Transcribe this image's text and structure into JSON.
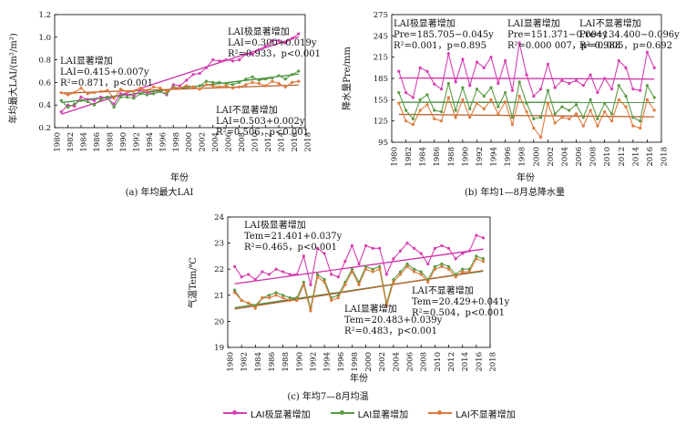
{
  "colors": {
    "sig_strong": "#d63fb0",
    "sig": "#5a9a44",
    "nonsig": "#e07a3c",
    "sig_strong_fit": "#cc2fa8",
    "sig_fit": "#3f8a3a",
    "nonsig_fit": "#b8622e"
  },
  "legend": [
    {
      "label": "LAI极显著增加",
      "color": "#d63fb0"
    },
    {
      "label": "LAI显著增加",
      "color": "#5a9a44"
    },
    {
      "label": "LAI不显著增加",
      "color": "#e07a3c"
    }
  ],
  "chart_data": [
    {
      "type": "line",
      "caption": "(a) 年均最大LAI",
      "xlabel": "年份",
      "ylabel": "年均最大LAI/(m²/m²)",
      "xlim": [
        1980,
        2018
      ],
      "ylim": [
        0.2,
        1.2
      ],
      "xticks": [
        1980,
        1982,
        1984,
        1986,
        1988,
        1990,
        1992,
        1994,
        1996,
        1998,
        2000,
        2002,
        2004,
        2006,
        2008,
        2010,
        2012,
        2014,
        2016,
        2018
      ],
      "yticks": [
        0.2,
        0.4,
        0.6,
        0.8,
        1.0,
        1.2
      ],
      "ytick_labels": [
        "0.2",
        "0.4",
        "0.6",
        "0.8",
        "1.0",
        "1.2"
      ],
      "x": [
        1981,
        1982,
        1983,
        1984,
        1985,
        1986,
        1987,
        1988,
        1989,
        1990,
        1991,
        1992,
        1993,
        1994,
        1995,
        1996,
        1997,
        1998,
        1999,
        2000,
        2001,
        2002,
        2003,
        2004,
        2005,
        2006,
        2007,
        2008,
        2009,
        2010,
        2011,
        2012,
        2013,
        2014,
        2015,
        2016,
        2017
      ],
      "series": [
        {
          "name": "LAI极显著增加",
          "color_key": "sig_strong",
          "values": [
            0.34,
            0.4,
            0.39,
            0.47,
            0.45,
            0.44,
            0.47,
            0.46,
            0.41,
            0.5,
            0.49,
            0.48,
            0.53,
            0.51,
            0.5,
            0.52,
            0.49,
            0.58,
            0.57,
            0.62,
            0.67,
            0.68,
            0.73,
            0.8,
            0.79,
            0.8,
            0.79,
            0.8,
            0.85,
            0.85,
            0.89,
            0.92,
            0.97,
            0.97,
            0.95,
            0.99,
            1.03
          ]
        },
        {
          "name": "LAI显著增加",
          "color_key": "sig",
          "values": [
            0.44,
            0.38,
            0.41,
            0.44,
            0.43,
            0.4,
            0.45,
            0.47,
            0.38,
            0.47,
            0.47,
            0.46,
            0.5,
            0.49,
            0.5,
            0.52,
            0.5,
            0.56,
            0.55,
            0.57,
            0.56,
            0.57,
            0.61,
            0.6,
            0.6,
            0.59,
            0.58,
            0.6,
            0.63,
            0.65,
            0.62,
            0.63,
            0.64,
            0.66,
            0.63,
            0.67,
            0.7
          ]
        },
        {
          "name": "LAI不显著增加",
          "color_key": "nonsig",
          "values": [
            0.51,
            0.49,
            0.51,
            0.55,
            0.5,
            0.51,
            0.52,
            0.53,
            0.46,
            0.54,
            0.52,
            0.52,
            0.55,
            0.53,
            0.56,
            0.55,
            0.52,
            0.55,
            0.55,
            0.57,
            0.56,
            0.54,
            0.58,
            0.57,
            0.56,
            0.57,
            0.55,
            0.56,
            0.58,
            0.6,
            0.59,
            0.57,
            0.61,
            0.59,
            0.56,
            0.6,
            0.61
          ]
        }
      ],
      "fits": [
        {
          "color_key": "sig_strong_fit",
          "a": 0.3,
          "b": 0.019
        },
        {
          "color_key": "sig_fit",
          "a": 0.415,
          "b": 0.007
        },
        {
          "color_key": "nonsig_fit",
          "a": 0.503,
          "b": 0.002
        }
      ],
      "annotations": [
        {
          "lines": [
            "LAI极显著增加",
            "LAI=0.300+0.019y",
            "R²=0.933，p<0.001"
          ]
        },
        {
          "lines": [
            "LAI显著增加",
            "LAI=0.415+0.007y",
            "R²=0.871，p<0.001"
          ]
        },
        {
          "lines": [
            "LAI不显著增加",
            "LAI=0.503+0.002y",
            "R²=0.506，p<0.001"
          ]
        }
      ]
    },
    {
      "type": "line",
      "caption": "(b) 年均1—8月总降水量",
      "xlabel": "年份",
      "ylabel": "降水量Pre/mm",
      "xlim": [
        1980,
        2018
      ],
      "ylim": [
        95,
        275
      ],
      "xticks": [
        1980,
        1982,
        1984,
        1986,
        1988,
        1990,
        1992,
        1994,
        1996,
        1998,
        2000,
        2002,
        2004,
        2006,
        2008,
        2010,
        2012,
        2014,
        2016,
        2018
      ],
      "yticks": [
        95,
        125,
        155,
        185,
        215,
        245,
        275
      ],
      "ytick_labels": [
        "95",
        "125",
        "155",
        "185",
        "215",
        "245",
        "275"
      ],
      "x": [
        1981,
        1982,
        1983,
        1984,
        1985,
        1986,
        1987,
        1988,
        1989,
        1990,
        1991,
        1992,
        1993,
        1994,
        1995,
        1996,
        1997,
        1998,
        1999,
        2000,
        2001,
        2002,
        2003,
        2004,
        2005,
        2006,
        2007,
        2008,
        2009,
        2010,
        2011,
        2012,
        2013,
        2014,
        2015,
        2016,
        2017
      ],
      "series": [
        {
          "name": "LAI极显著增加",
          "color_key": "sig_strong",
          "values": [
            195,
            165,
            158,
            200,
            195,
            177,
            170,
            220,
            180,
            212,
            175,
            208,
            200,
            215,
            178,
            210,
            168,
            235,
            190,
            160,
            170,
            205,
            172,
            182,
            178,
            182,
            175,
            190,
            165,
            185,
            170,
            210,
            200,
            170,
            168,
            222,
            200
          ]
        },
        {
          "name": "LAI显著增加",
          "color_key": "sig",
          "values": [
            165,
            140,
            128,
            155,
            162,
            140,
            138,
            178,
            140,
            172,
            142,
            170,
            160,
            172,
            145,
            165,
            130,
            180,
            150,
            128,
            130,
            168,
            135,
            145,
            140,
            148,
            130,
            155,
            128,
            150,
            135,
            175,
            160,
            130,
            125,
            175,
            158
          ]
        },
        {
          "name": "LAI不显著增加",
          "color_key": "nonsig",
          "values": [
            150,
            125,
            120,
            140,
            148,
            128,
            125,
            158,
            130,
            155,
            130,
            150,
            142,
            155,
            135,
            152,
            120,
            160,
            138,
            115,
            102,
            150,
            122,
            130,
            128,
            135,
            118,
            140,
            118,
            138,
            125,
            155,
            145,
            118,
            115,
            155,
            140
          ]
        }
      ],
      "fits": [
        {
          "color_key": "sig_strong_fit",
          "a": 185.705,
          "b": -0.045
        },
        {
          "color_key": "sig_fit",
          "a": 151.371,
          "b": -0.004
        },
        {
          "color_key": "nonsig_fit",
          "a": 134.4,
          "b": -0.096
        }
      ],
      "annotations": [
        {
          "lines": [
            "LAI极显著增加",
            "Pre=185.705−0.045y",
            "R²=0.001，p=0.895"
          ]
        },
        {
          "lines": [
            "LAI显著增加",
            "Pre=151.371−0.004y",
            "R²=0.000 007，p=0.988"
          ]
        },
        {
          "lines": [
            "LAI不显著增加",
            "Pre=134.400−0.096y",
            "R²=0.005，p=0.692"
          ]
        }
      ]
    },
    {
      "type": "line",
      "caption": "(c) 年均7—8月均温",
      "xlabel": "年份",
      "ylabel": "气温Tem/℃",
      "xlim": [
        1980,
        2018
      ],
      "ylim": [
        19,
        24
      ],
      "xticks": [
        1980,
        1982,
        1984,
        1986,
        1988,
        1990,
        1992,
        1994,
        1996,
        1998,
        2000,
        2002,
        2004,
        2006,
        2008,
        2010,
        2012,
        2014,
        2016,
        2018
      ],
      "yticks": [
        19,
        20,
        21,
        22,
        23,
        24
      ],
      "ytick_labels": [
        "19",
        "20",
        "21",
        "22",
        "23",
        "24"
      ],
      "x": [
        1981,
        1982,
        1983,
        1984,
        1985,
        1986,
        1987,
        1988,
        1989,
        1990,
        1991,
        1992,
        1993,
        1994,
        1995,
        1996,
        1997,
        1998,
        1999,
        2000,
        2001,
        2002,
        2003,
        2004,
        2005,
        2006,
        2007,
        2008,
        2009,
        2010,
        2011,
        2012,
        2013,
        2014,
        2015,
        2016,
        2017
      ],
      "series": [
        {
          "name": "LAI极显著增加",
          "color_key": "sig_strong",
          "values": [
            22.1,
            21.7,
            21.8,
            21.6,
            21.9,
            21.8,
            22.0,
            21.9,
            21.8,
            21.8,
            22.5,
            21.4,
            22.8,
            22.6,
            21.8,
            21.7,
            22.3,
            22.9,
            22.2,
            22.9,
            22.8,
            22.8,
            21.8,
            22.4,
            22.7,
            23.0,
            22.8,
            22.6,
            22.2,
            22.8,
            22.9,
            22.8,
            22.4,
            22.6,
            22.7,
            23.3,
            23.2
          ]
        },
        {
          "name": "LAI显著增加",
          "color_key": "sig",
          "values": [
            21.2,
            20.8,
            20.7,
            20.6,
            20.9,
            21.0,
            21.1,
            21.0,
            20.9,
            20.9,
            21.5,
            20.5,
            21.8,
            21.6,
            20.9,
            21.0,
            21.5,
            22.0,
            21.5,
            22.1,
            22.0,
            22.1,
            20.7,
            21.6,
            21.9,
            22.2,
            22.0,
            21.9,
            21.6,
            22.1,
            22.2,
            22.1,
            21.8,
            22.0,
            22.0,
            22.5,
            22.4
          ]
        },
        {
          "name": "LAI不显著增加",
          "color_key": "nonsig",
          "values": [
            21.1,
            20.8,
            20.7,
            20.5,
            20.9,
            20.9,
            21.0,
            20.9,
            20.8,
            20.8,
            21.4,
            20.4,
            21.7,
            21.5,
            20.8,
            20.9,
            21.4,
            21.9,
            21.4,
            22.0,
            21.9,
            22.0,
            20.6,
            21.5,
            21.8,
            22.1,
            21.9,
            21.8,
            21.5,
            22.0,
            22.1,
            22.0,
            21.7,
            21.9,
            21.9,
            22.4,
            22.3
          ]
        }
      ],
      "fits": [
        {
          "color_key": "sig_strong_fit",
          "a": 21.401,
          "b": 0.037
        },
        {
          "color_key": "sig_fit",
          "a": 20.483,
          "b": 0.039
        },
        {
          "color_key": "nonsig_fit",
          "a": 20.429,
          "b": 0.041
        }
      ],
      "annotations": [
        {
          "lines": [
            "LAI极显著增加",
            "Tem=21.401+0.037y",
            "R²=0.465，p<0.001"
          ]
        },
        {
          "lines": [
            "LAI显著增加",
            "Tem=20.483+0.039y",
            "R²=0.483，p<0.001"
          ]
        },
        {
          "lines": [
            "LAI不显著增加",
            "Tem=20.429+0.041y",
            "R²=0.504，p<0.001"
          ]
        }
      ]
    }
  ]
}
